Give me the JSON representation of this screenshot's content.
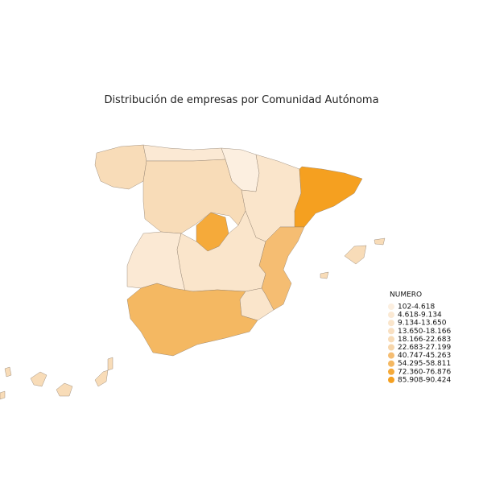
{
  "title": "Distribución de empresas por Comunidad Autónoma",
  "legend": {
    "title": "NUMERO",
    "items": [
      {
        "label": "102-4.618",
        "color": "#fcefe0"
      },
      {
        "label": "4.618-9.134",
        "color": "#fbe9d4"
      },
      {
        "label": "9.134-13.650",
        "color": "#fae5cb"
      },
      {
        "label": "13.650-18.166",
        "color": "#f9e0c2"
      },
      {
        "label": "18.166-22.683",
        "color": "#f8dcb8"
      },
      {
        "label": "22.683-27.199",
        "color": "#f7d6ab"
      },
      {
        "label": "40.747-45.263",
        "color": "#f5bd72"
      },
      {
        "label": "54.295-58.811",
        "color": "#f4b862"
      },
      {
        "label": "72.360-76.876",
        "color": "#f5aa3a"
      },
      {
        "label": "85.908-90.424",
        "color": "#f5a020"
      }
    ]
  }
}
